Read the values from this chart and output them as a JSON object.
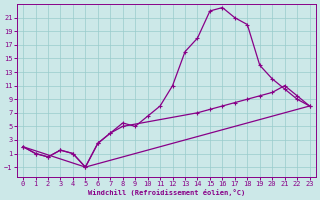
{
  "xlabel": "Windchill (Refroidissement éolien,°C)",
  "bg_color": "#cce8e8",
  "line_color": "#880088",
  "grid_color": "#99cccc",
  "xlim": [
    -0.5,
    23.5
  ],
  "ylim": [
    -2.5,
    23
  ],
  "xticks": [
    0,
    1,
    2,
    3,
    4,
    5,
    6,
    7,
    8,
    9,
    10,
    11,
    12,
    13,
    14,
    15,
    16,
    17,
    18,
    19,
    20,
    21,
    22,
    23
  ],
  "yticks": [
    -1,
    1,
    3,
    5,
    7,
    9,
    11,
    13,
    15,
    17,
    19,
    21
  ],
  "c1x": [
    0,
    1,
    2,
    3,
    4,
    5,
    6,
    7,
    8,
    9,
    10,
    11,
    12,
    13,
    14,
    15,
    16,
    17,
    18,
    19,
    20,
    21,
    22,
    23
  ],
  "c1y": [
    2,
    1,
    0.5,
    1.5,
    1,
    -1,
    2.5,
    4,
    5.5,
    5,
    6.5,
    8,
    11,
    16,
    18,
    22,
    22.5,
    21,
    20,
    14,
    12,
    10.5,
    9,
    8
  ],
  "c2x": [
    0,
    1,
    2,
    3,
    4,
    5,
    6,
    7,
    8,
    14,
    15,
    16,
    17,
    18,
    19,
    20,
    21,
    22,
    23
  ],
  "c2y": [
    2,
    1,
    0.5,
    1.5,
    1,
    -1,
    2.5,
    4,
    5,
    7,
    7.5,
    8,
    8.5,
    9,
    9.5,
    10,
    11,
    9.5,
    8
  ],
  "c3x": [
    0,
    5,
    23
  ],
  "c3y": [
    2,
    -1,
    8
  ]
}
